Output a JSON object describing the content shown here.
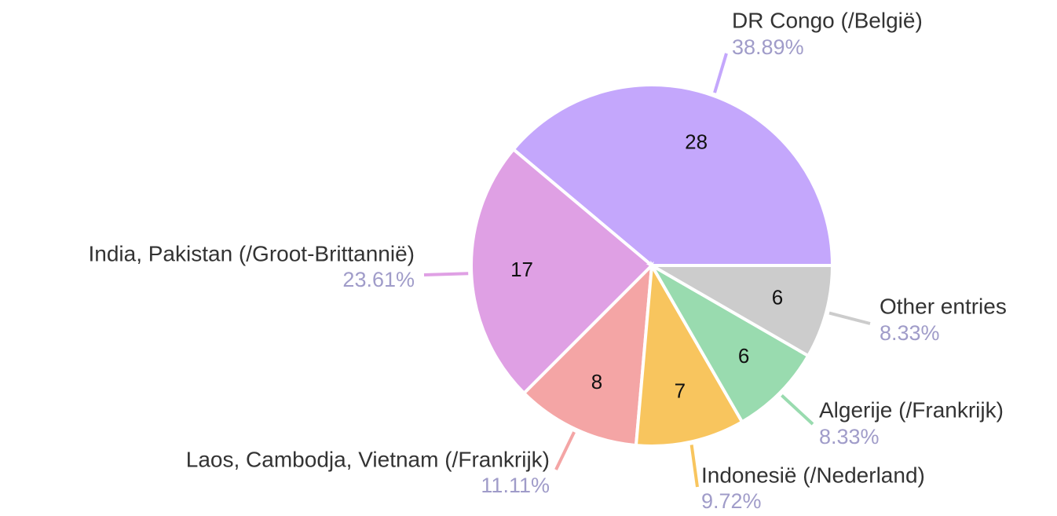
{
  "chart_data": {
    "type": "pie",
    "categories": [
      "DR Congo (/België)",
      "India, Pakistan (/Groot-Brittannië)",
      "Laos, Cambodja, Vietnam (/Frankrijk)",
      "Indonesië (/Nederland)",
      "Algerije (/Frankrijk)",
      "Other entries"
    ],
    "values": [
      28,
      17,
      8,
      7,
      6,
      6
    ],
    "percent_labels": [
      "38.89%",
      "23.61%",
      "11.11%",
      "9.72%",
      "8.33%",
      "8.33%"
    ],
    "colors": [
      "#c4a7fc",
      "#dfa0e4",
      "#f4a5a5",
      "#f8c55e",
      "#99dbaf",
      "#cccccc"
    ]
  }
}
